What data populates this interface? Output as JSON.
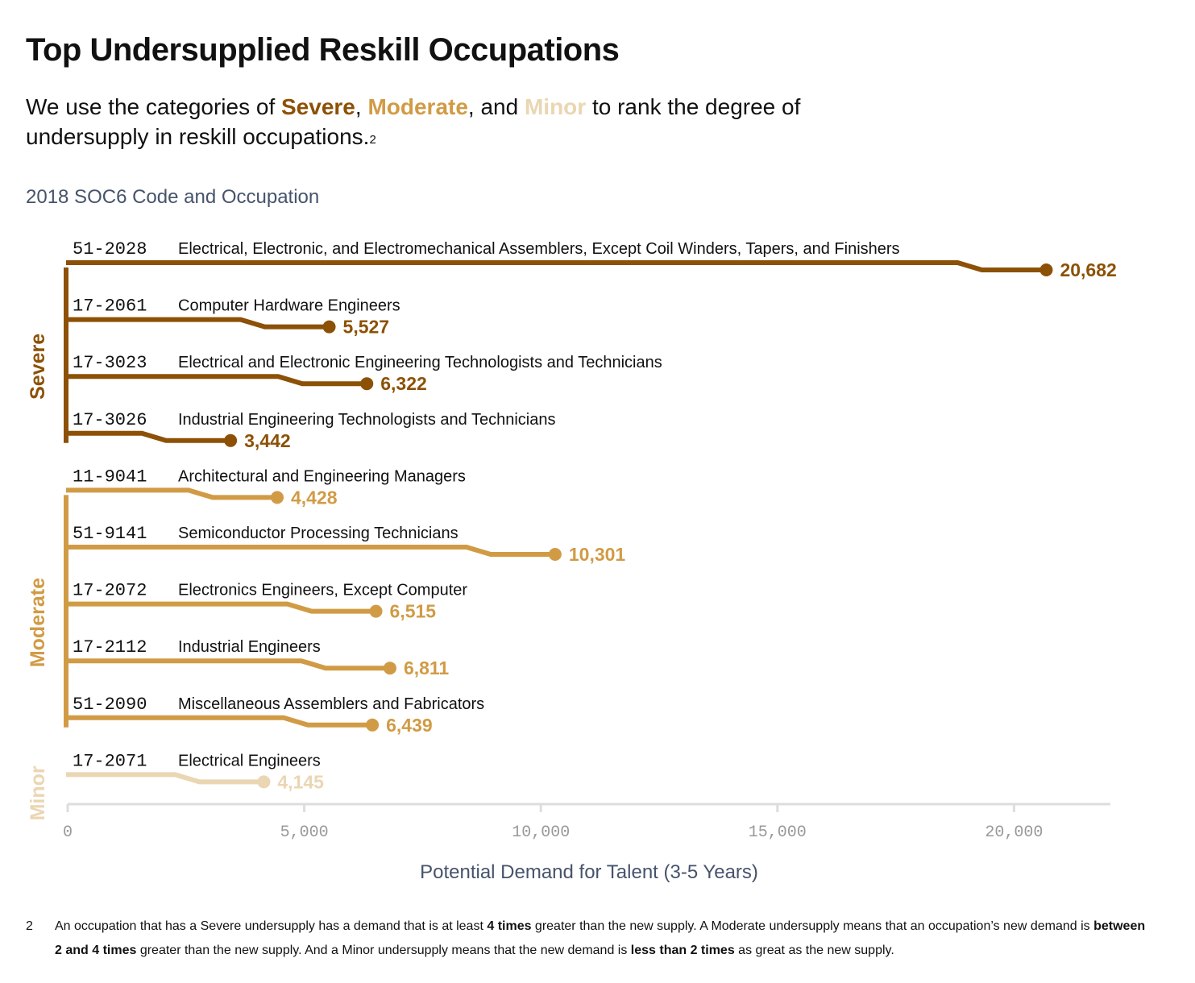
{
  "title": "Top Undersupplied Reskill Occupations",
  "subtitle": {
    "pre": "We use the categories of ",
    "severe": "Severe",
    "sep1": ", ",
    "moderate": "Moderate",
    "sep2": ", and ",
    "minor": "Minor",
    "post": " to rank the degree of undersupply in reskill occupations.",
    "ref": "2"
  },
  "colors": {
    "severe": "#8c5106",
    "moderate": "#d19b45",
    "minor": "#ead6b2",
    "axis": "#dddddd",
    "label": "#46536b"
  },
  "chart_data": {
    "type": "bar",
    "title": "2018 SOC6 Code and Occupation",
    "xlabel": "Potential Demand for Talent (3-5 Years)",
    "xlim": [
      0,
      22000
    ],
    "xticks": [
      "0",
      "5,000",
      "10,000",
      "15,000",
      "20,000"
    ],
    "groups": [
      {
        "name": "Severe",
        "color": "#8c5106",
        "items": [
          {
            "code": "51-2028",
            "occupation": "Electrical, Electronic, and Electromechanical Assemblers, Except Coil Winders, Tapers, and Finishers",
            "value": 20682,
            "label": "20,682"
          },
          {
            "code": "17-2061",
            "occupation": "Computer Hardware Engineers",
            "value": 5527,
            "label": "5,527"
          },
          {
            "code": "17-3023",
            "occupation": "Electrical and Electronic Engineering Technologists and Technicians",
            "value": 6322,
            "label": "6,322"
          },
          {
            "code": "17-3026",
            "occupation": "Industrial Engineering Technologists and Technicians",
            "value": 3442,
            "label": "3,442"
          }
        ]
      },
      {
        "name": "Moderate",
        "color": "#d19b45",
        "items": [
          {
            "code": "11-9041",
            "occupation": "Architectural and Engineering Managers",
            "value": 4428,
            "label": "4,428"
          },
          {
            "code": "51-9141",
            "occupation": "Semiconductor Processing Technicians",
            "value": 10301,
            "label": "10,301"
          },
          {
            "code": "17-2072",
            "occupation": "Electronics Engineers, Except Computer",
            "value": 6515,
            "label": "6,515"
          },
          {
            "code": "17-2112",
            "occupation": "Industrial Engineers",
            "value": 6811,
            "label": "6,811"
          },
          {
            "code": "51-2090",
            "occupation": "Miscellaneous Assemblers and Fabricators",
            "value": 6439,
            "label": "6,439"
          }
        ]
      },
      {
        "name": "Minor",
        "color": "#ead6b2",
        "items": [
          {
            "code": "17-2071",
            "occupation": "Electrical Engineers",
            "value": 4145,
            "label": "4,145"
          }
        ]
      }
    ]
  },
  "footnote": {
    "number": "2",
    "p1": "An occupation that has a Severe undersupply has a demand that is at least ",
    "b1": "4 times",
    "p2": " greater than the new supply. A Moderate undersupply means that an occupation’s new demand is ",
    "b2": "between 2 and 4 times",
    "p3": " greater than the new supply. And a Minor undersupply means that the new demand is ",
    "b3": "less than 2 times",
    "p4": " as great as the new supply."
  }
}
